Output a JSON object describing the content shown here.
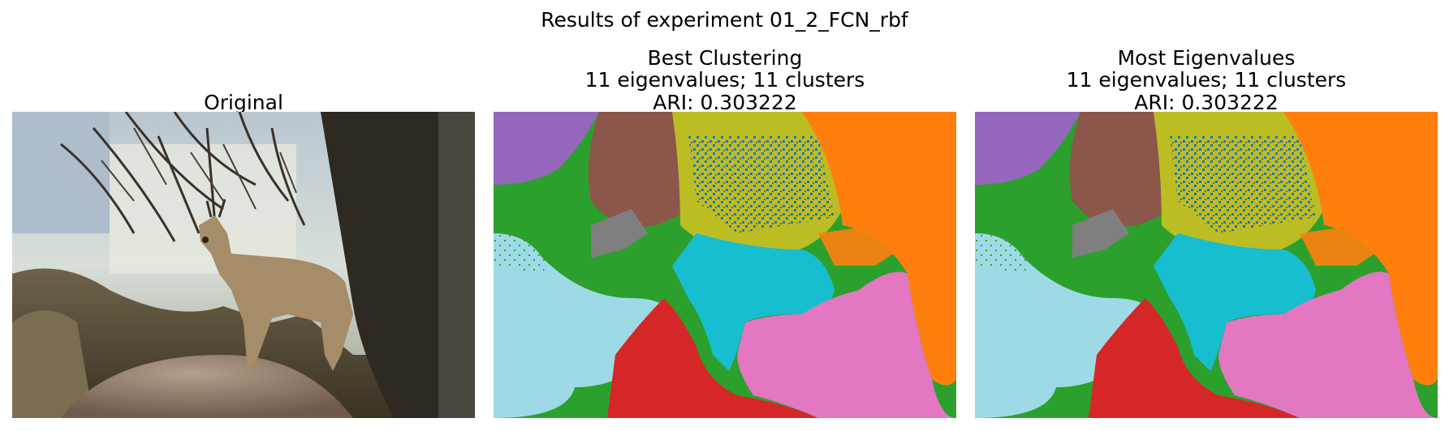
{
  "figure": {
    "suptitle": "Results of experiment 01_2_FCN_rbf",
    "panels": [
      {
        "title_lines": [
          "Original"
        ],
        "image": "photograph of a small antelope (klipspringer) standing on a rock under bare tree branches"
      },
      {
        "title_lines": [
          "Best Clustering",
          "11 eigenvalues; 11 clusters",
          "ARI: 0.303222"
        ],
        "image": "segmentation map with 11 colored clusters"
      },
      {
        "title_lines": [
          "Most Eigenvalues",
          "11 eigenvalues; 11 clusters",
          "ARI: 0.303222"
        ],
        "image": "segmentation map with 11 colored clusters"
      }
    ]
  },
  "colors": {
    "cluster_purple": "#9467bd",
    "cluster_brown": "#8c564b",
    "cluster_olive": "#bcbd22",
    "cluster_blue": "#1f77b4",
    "cluster_orange": "#ff7f0e",
    "cluster_green": "#2ca02c",
    "cluster_gray": "#7f7f7f",
    "cluster_cyan": "#17becf",
    "cluster_lightblue": "#9edae5",
    "cluster_red": "#d62728",
    "cluster_pink": "#e377c2"
  }
}
